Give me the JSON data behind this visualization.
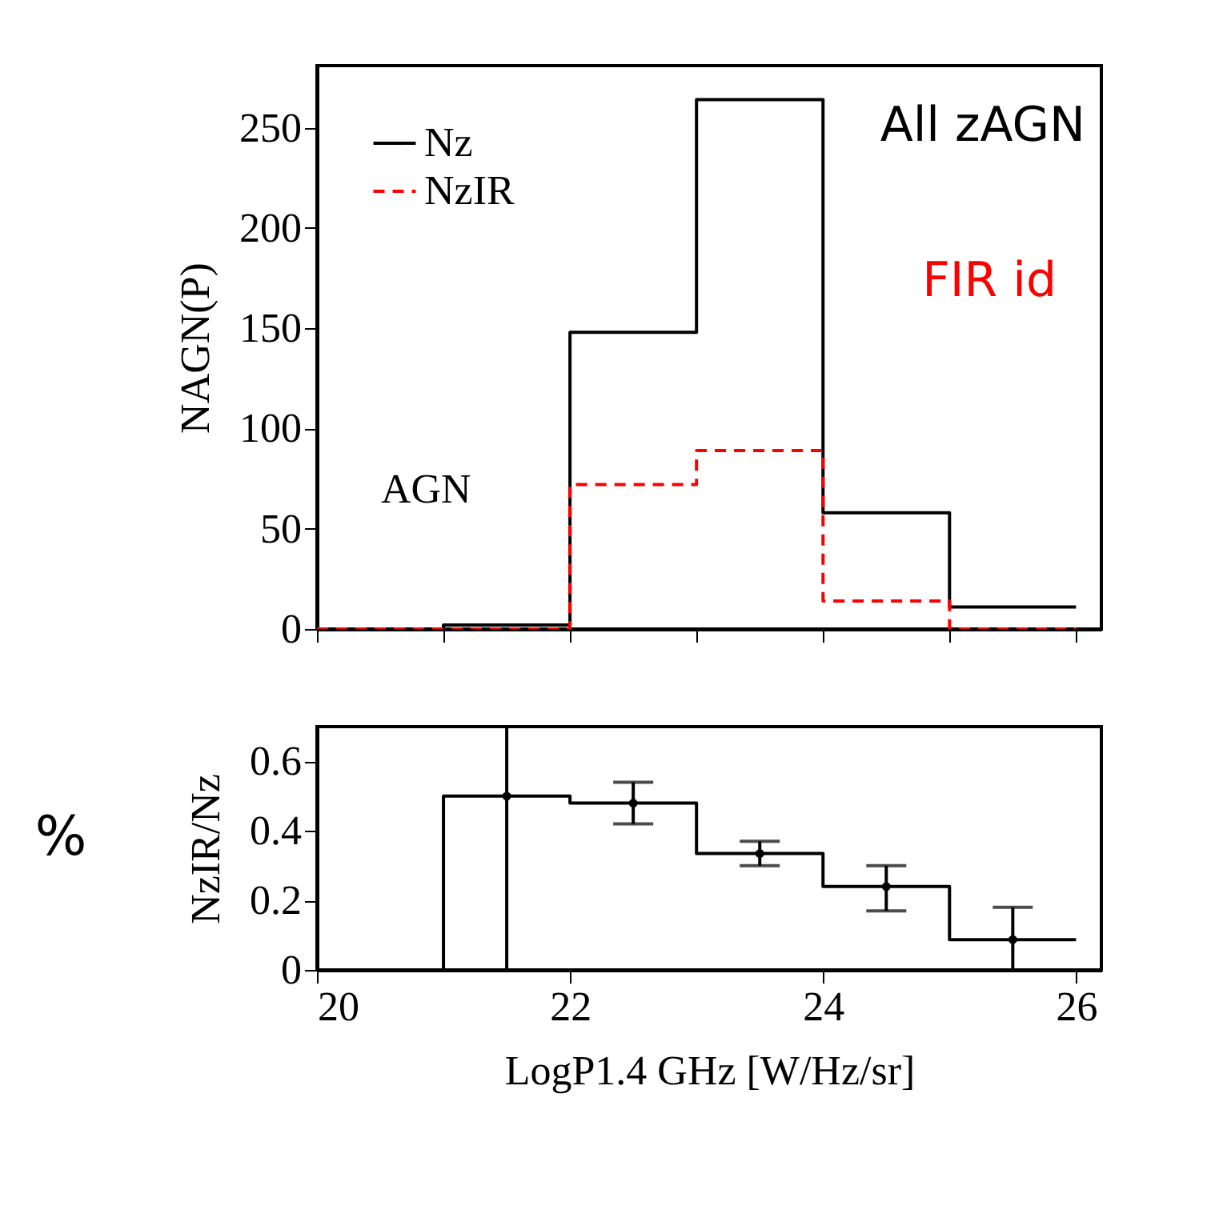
{
  "chart_data": [
    {
      "type": "histogram",
      "ylabel": "NAGN(P)",
      "bins": [
        20,
        21,
        22,
        23,
        24,
        25,
        26
      ],
      "series": [
        {
          "name": "Nz",
          "color": "#000000",
          "line_style": "solid",
          "values": [
            0,
            2,
            148,
            264,
            58,
            11
          ]
        },
        {
          "name": "NzIR",
          "color": "#ff0000",
          "line_style": "dashed",
          "values": [
            0,
            0,
            72,
            89,
            14,
            0
          ]
        }
      ],
      "xlim": [
        20,
        26.2
      ],
      "xticks": [
        {
          "value": 20,
          "label": null
        },
        {
          "value": 21,
          "label": null
        },
        {
          "value": 22,
          "label": null
        },
        {
          "value": 23,
          "label": null
        },
        {
          "value": 24,
          "label": null
        },
        {
          "value": 25,
          "label": null
        },
        {
          "value": 26,
          "label": null
        }
      ],
      "ylim": [
        0,
        281
      ],
      "yticks": [
        0,
        50,
        100,
        150,
        200,
        250
      ],
      "tick_labels": "y",
      "grid": false,
      "legend": "top left",
      "annotations": [
        "All zAGN",
        "FIR id",
        "AGN"
      ]
    },
    {
      "type": "histogram",
      "xlabel": "LogP1.4 GHz [W/Hz/sr]",
      "ylabel": "NzIR/Nz",
      "bins": [
        20,
        21,
        22,
        23,
        24,
        25,
        26
      ],
      "series": [
        {
          "color": "#000000",
          "values": [
            0,
            0.5,
            0.48,
            0.335,
            0.24,
            0.087
          ]
        },
        {
          "type": "scatter",
          "marker": "circle",
          "color": "#000000",
          "x": [
            21.5,
            22.5,
            23.5,
            24.5,
            25.5
          ],
          "values": [
            0.5,
            0.48,
            0.335,
            0.24,
            0.087
          ],
          "errors": [
            [
              0,
              0.7
            ],
            [
              0.42,
              0.54
            ],
            [
              0.3,
              0.37
            ],
            [
              0.17,
              0.3
            ],
            [
              0,
              0.18
            ]
          ]
        }
      ],
      "xlim": [
        20,
        26.2
      ],
      "xticks": [
        20,
        22,
        24,
        26
      ],
      "ylim": [
        0,
        0.7
      ],
      "yticks": [
        0,
        0.2,
        0.4,
        0.6
      ],
      "grid": false,
      "annotations": [
        "%"
      ]
    }
  ]
}
